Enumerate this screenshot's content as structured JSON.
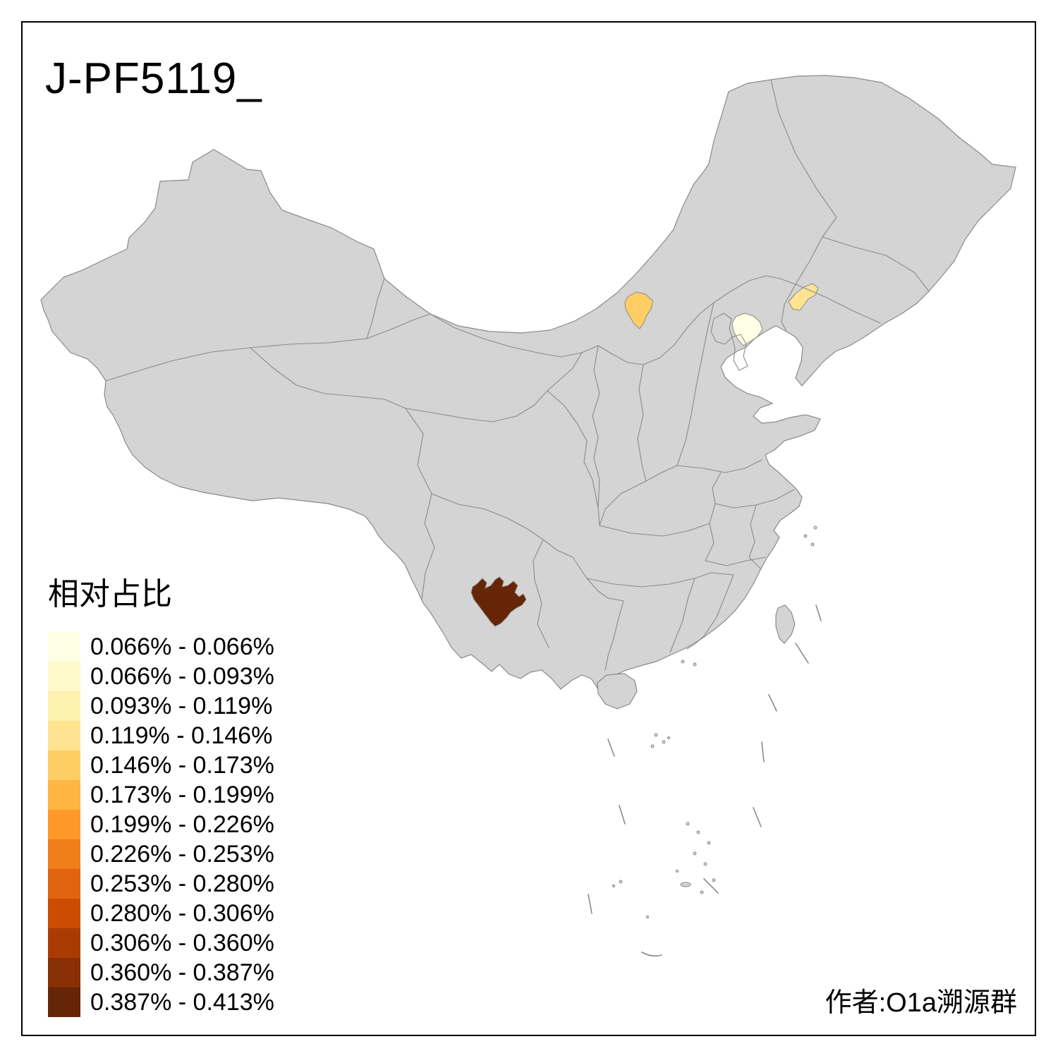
{
  "title": {
    "text": "J-PF5119_"
  },
  "legend": {
    "title": "相对占比",
    "bins": [
      {
        "label": "0.066% - 0.066%",
        "color": "#FFFFE5"
      },
      {
        "label": "0.066% - 0.093%",
        "color": "#FFFAC9"
      },
      {
        "label": "0.093% - 0.119%",
        "color": "#FEF0AE"
      },
      {
        "label": "0.119% - 0.146%",
        "color": "#FEE391"
      },
      {
        "label": "0.146% - 0.173%",
        "color": "#FECE65"
      },
      {
        "label": "0.173% - 0.199%",
        "color": "#FEB642"
      },
      {
        "label": "0.199% - 0.226%",
        "color": "#FE9929"
      },
      {
        "label": "0.226% - 0.253%",
        "color": "#F07E1B"
      },
      {
        "label": "0.253% - 0.280%",
        "color": "#E1640E"
      },
      {
        "label": "0.280% - 0.306%",
        "color": "#CC4C02"
      },
      {
        "label": "0.306% - 0.360%",
        "color": "#AA3C03"
      },
      {
        "label": "0.360% - 0.387%",
        "color": "#882F05"
      },
      {
        "label": "0.387% - 0.413%",
        "color": "#662506"
      }
    ]
  },
  "attribution": {
    "text": "作者:O1a溯源群"
  },
  "map": {
    "base_fill": "#D4D4D4",
    "border_color": "#8A8A8A",
    "sea_color": "#FFFFFF",
    "frame_color": "#000000"
  },
  "chart_data": {
    "type": "choropleth",
    "region_scope": "China, province and prefecture boundaries, incl. Taiwan, Hainan and South China Sea dashed line",
    "title": "J-PF5119_",
    "legend_title": "相对占比",
    "value_range": [
      "0.066%",
      "0.413%"
    ],
    "breaks": [
      "0.066%",
      "0.066%",
      "0.093%",
      "0.119%",
      "0.146%",
      "0.173%",
      "0.199%",
      "0.226%",
      "0.253%",
      "0.280%",
      "0.306%",
      "0.360%",
      "0.387%",
      "0.413%"
    ],
    "highlighted_areas": [
      {
        "approx_location": "central Inner Mongolia (north-central China)",
        "bin": "0.146% - 0.173%",
        "color": "#FECE65"
      },
      {
        "approx_location": "northeastern Hebei near Bohai coast (Tangshan area)",
        "bin": "0.066% - 0.066%",
        "color": "#FFFFE5"
      },
      {
        "approx_location": "southwestern Liaoning",
        "bin": "0.119% - 0.146%",
        "color": "#FEE391"
      },
      {
        "approx_location": "central Yunnan",
        "bin": "0.387% - 0.413%",
        "color": "#662506"
      }
    ],
    "all_other_regions": "no data (gray #D4D4D4)"
  }
}
